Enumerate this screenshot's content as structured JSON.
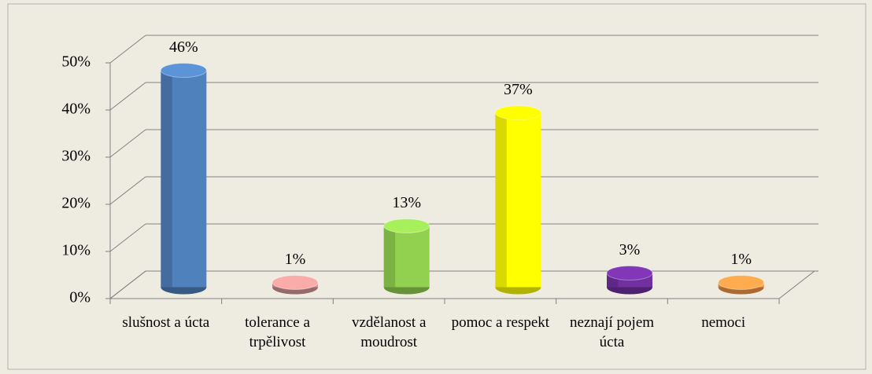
{
  "chart_data": {
    "type": "bar3d",
    "categories": [
      "slušnost a úcta",
      "tolerance a trpělivost",
      "vzdělanost a moudrost",
      "pomoc a respekt",
      "neznají pojem úcta",
      "nemoci"
    ],
    "values": [
      46,
      1,
      13,
      37,
      3,
      1
    ],
    "value_labels": [
      "46%",
      "1%",
      "13%",
      "37%",
      "3%",
      "1%"
    ],
    "colors": [
      "#4f81bd",
      "#d99694",
      "#92d050",
      "#ffff00",
      "#7030a0",
      "#f79646"
    ],
    "ylim": [
      0,
      50
    ],
    "yticks": [
      {
        "value": 0,
        "label": "0%"
      },
      {
        "value": 10,
        "label": "10%"
      },
      {
        "value": 20,
        "label": "20%"
      },
      {
        "value": 30,
        "label": "30%"
      },
      {
        "value": 40,
        "label": "40%"
      },
      {
        "value": 50,
        "label": "50%"
      }
    ],
    "grid": true
  }
}
